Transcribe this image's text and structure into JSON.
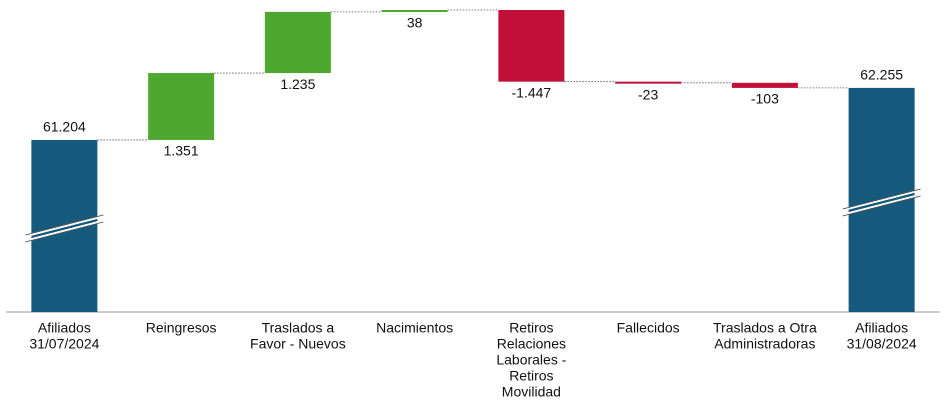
{
  "chart_data": {
    "type": "waterfall",
    "categories": [
      [
        "Afiliados",
        "31/07/2024"
      ],
      [
        "Reingresos"
      ],
      [
        "Traslados a",
        "Favor - Nuevos"
      ],
      [
        "Nacimientos"
      ],
      [
        "Retiros",
        "Relaciones",
        "Laborales -",
        "Retiros",
        "Movilidad"
      ],
      [
        "Fallecidos"
      ],
      [
        "Traslados a Otra",
        "Administradoras"
      ],
      [
        "Afiliados",
        "31/08/2024"
      ]
    ],
    "values": [
      61204,
      1351,
      1235,
      38,
      -1447,
      -23,
      -103,
      62255
    ],
    "value_labels": [
      "61.204",
      "1.351",
      "1.235",
      "38",
      "-1.447",
      "-23",
      "-103",
      "62.255"
    ],
    "is_total": [
      true,
      false,
      false,
      false,
      false,
      false,
      false,
      true
    ],
    "colors": {
      "total": "#155a7c",
      "increase": "#4ea72e",
      "decrease": "#c0103a"
    },
    "ylim": [
      57730,
      64030
    ],
    "axis_break": true
  }
}
